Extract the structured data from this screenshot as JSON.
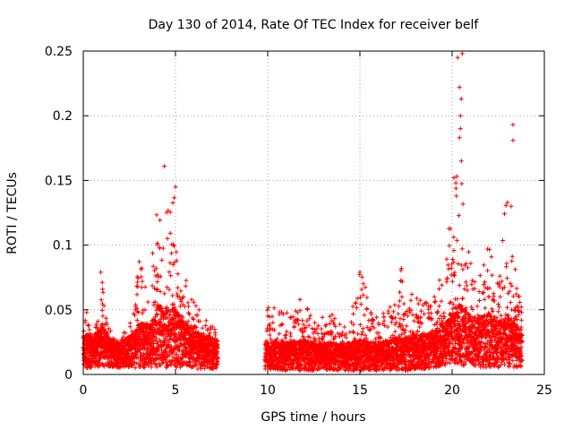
{
  "chart_data": {
    "type": "scatter",
    "title": "Day 130 of 2014, Rate Of TEC Index for receiver belf",
    "xlabel": "GPS time / hours",
    "ylabel": "ROTI / TECUs",
    "xlim": [
      0,
      25
    ],
    "ylim": [
      0,
      0.25
    ],
    "x_ticks": [
      0,
      5,
      10,
      15,
      20,
      25
    ],
    "x_tick_labels": [
      "0",
      "5",
      "10",
      "15",
      "20",
      "25"
    ],
    "y_ticks": [
      0,
      0.05,
      0.1,
      0.15,
      0.2,
      0.25
    ],
    "y_tick_labels": [
      "0",
      "0.05",
      "0.1",
      "0.15",
      "0.2",
      "0.25"
    ],
    "grid": true,
    "marker": "+",
    "marker_color": "#ff0000",
    "density_profile_note": "Dense clusters of ROTI samples; data gap between ~7.3 h and ~9.8 h",
    "envelope": {
      "x": [
        0.0,
        0.2,
        0.5,
        0.8,
        1.0,
        1.3,
        1.6,
        2.0,
        2.4,
        2.8,
        3.0,
        3.3,
        3.6,
        3.9,
        4.1,
        4.3,
        4.6,
        4.9,
        5.1,
        5.4,
        5.7,
        6.0,
        6.3,
        6.6,
        6.9,
        7.2,
        9.9,
        10.2,
        10.6,
        11.0,
        11.4,
        11.8,
        12.2,
        12.6,
        13.0,
        13.4,
        13.8,
        14.2,
        14.6,
        15.0,
        15.3,
        15.6,
        16.0,
        16.4,
        16.8,
        17.2,
        17.6,
        18.0,
        18.4,
        18.8,
        19.2,
        19.6,
        19.9,
        20.2,
        20.5,
        20.8,
        21.1,
        21.4,
        21.7,
        22.0,
        22.3,
        22.6,
        22.9,
        23.2,
        23.5,
        23.8
      ],
      "upper": [
        0.035,
        0.05,
        0.03,
        0.048,
        0.078,
        0.04,
        0.03,
        0.025,
        0.04,
        0.05,
        0.1,
        0.078,
        0.06,
        0.12,
        0.13,
        0.1,
        0.135,
        0.145,
        0.11,
        0.085,
        0.07,
        0.06,
        0.05,
        0.045,
        0.04,
        0.035,
        0.05,
        0.055,
        0.05,
        0.05,
        0.045,
        0.06,
        0.05,
        0.04,
        0.045,
        0.05,
        0.04,
        0.045,
        0.055,
        0.08,
        0.07,
        0.05,
        0.045,
        0.05,
        0.055,
        0.082,
        0.06,
        0.065,
        0.06,
        0.055,
        0.07,
        0.09,
        0.12,
        0.155,
        0.15,
        0.11,
        0.08,
        0.075,
        0.09,
        0.1,
        0.08,
        0.085,
        0.135,
        0.11,
        0.07,
        0.05
      ],
      "lower": [
        0.005,
        0.004,
        0.005,
        0.006,
        0.006,
        0.005,
        0.006,
        0.005,
        0.006,
        0.005,
        0.005,
        0.005,
        0.005,
        0.006,
        0.005,
        0.005,
        0.005,
        0.006,
        0.005,
        0.005,
        0.005,
        0.004,
        0.004,
        0.004,
        0.004,
        0.004,
        0.004,
        0.004,
        0.003,
        0.003,
        0.004,
        0.003,
        0.003,
        0.003,
        0.004,
        0.003,
        0.003,
        0.003,
        0.003,
        0.003,
        0.003,
        0.003,
        0.003,
        0.003,
        0.003,
        0.003,
        0.003,
        0.004,
        0.004,
        0.004,
        0.005,
        0.006,
        0.008,
        0.008,
        0.007,
        0.006,
        0.006,
        0.006,
        0.005,
        0.005,
        0.005,
        0.005,
        0.005,
        0.005,
        0.005,
        0.004
      ],
      "median": [
        0.018,
        0.02,
        0.017,
        0.022,
        0.025,
        0.02,
        0.016,
        0.015,
        0.018,
        0.02,
        0.025,
        0.025,
        0.024,
        0.03,
        0.035,
        0.032,
        0.033,
        0.035,
        0.03,
        0.027,
        0.024,
        0.022,
        0.02,
        0.019,
        0.018,
        0.017,
        0.016,
        0.017,
        0.016,
        0.016,
        0.015,
        0.017,
        0.016,
        0.015,
        0.015,
        0.016,
        0.015,
        0.015,
        0.016,
        0.017,
        0.017,
        0.016,
        0.015,
        0.016,
        0.017,
        0.018,
        0.018,
        0.019,
        0.02,
        0.02,
        0.022,
        0.025,
        0.03,
        0.035,
        0.034,
        0.03,
        0.028,
        0.028,
        0.029,
        0.03,
        0.028,
        0.027,
        0.028,
        0.027,
        0.024,
        0.02
      ]
    },
    "outliers": [
      {
        "x": 4.4,
        "y": 0.161
      },
      {
        "x": 5.0,
        "y": 0.145
      },
      {
        "x": 0.95,
        "y": 0.079
      },
      {
        "x": 1.05,
        "y": 0.066
      },
      {
        "x": 15.0,
        "y": 0.079
      },
      {
        "x": 17.25,
        "y": 0.082
      },
      {
        "x": 20.3,
        "y": 0.245
      },
      {
        "x": 20.4,
        "y": 0.222
      },
      {
        "x": 20.45,
        "y": 0.2
      },
      {
        "x": 20.4,
        "y": 0.183
      },
      {
        "x": 20.5,
        "y": 0.165
      },
      {
        "x": 20.55,
        "y": 0.248
      },
      {
        "x": 20.5,
        "y": 0.213
      },
      {
        "x": 20.45,
        "y": 0.19
      },
      {
        "x": 23.3,
        "y": 0.193
      },
      {
        "x": 23.3,
        "y": 0.181
      },
      {
        "x": 23.0,
        "y": 0.133
      },
      {
        "x": 23.2,
        "y": 0.13
      },
      {
        "x": 20.1,
        "y": 0.152
      },
      {
        "x": 20.2,
        "y": 0.148
      }
    ]
  }
}
